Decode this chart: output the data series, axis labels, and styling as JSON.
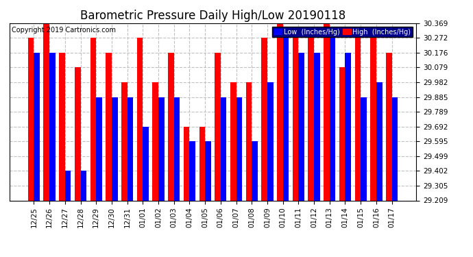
{
  "title": "Barometric Pressure Daily High/Low 20190118",
  "copyright": "Copyright 2019 Cartronics.com",
  "legend_low": "Low  (Inches/Hg)",
  "legend_high": "High  (Inches/Hg)",
  "dates": [
    "12/25",
    "12/26",
    "12/27",
    "12/28",
    "12/29",
    "12/30",
    "12/31",
    "01/01",
    "01/02",
    "01/03",
    "01/04",
    "01/05",
    "01/06",
    "01/07",
    "01/08",
    "01/09",
    "01/10",
    "01/11",
    "01/12",
    "01/13",
    "01/14",
    "01/15",
    "01/16",
    "01/17"
  ],
  "high": [
    30.272,
    30.369,
    30.176,
    30.079,
    30.272,
    30.176,
    29.982,
    30.272,
    29.982,
    30.176,
    29.692,
    29.692,
    30.176,
    29.982,
    29.982,
    30.272,
    30.369,
    30.272,
    30.272,
    30.369,
    30.079,
    30.272,
    30.272,
    30.176
  ],
  "low": [
    30.176,
    30.176,
    29.402,
    29.402,
    29.885,
    29.885,
    29.885,
    29.692,
    29.885,
    29.885,
    29.595,
    29.595,
    29.885,
    29.885,
    29.595,
    29.982,
    30.272,
    30.176,
    30.176,
    30.272,
    30.176,
    29.885,
    29.982,
    29.885
  ],
  "color_high": "#ff0000",
  "color_low": "#0000ff",
  "background_color": "#ffffff",
  "plot_bg_color": "#ffffff",
  "grid_color": "#c0c0c0",
  "yticks": [
    29.209,
    29.305,
    29.402,
    29.499,
    29.595,
    29.692,
    29.789,
    29.885,
    29.982,
    30.079,
    30.176,
    30.272,
    30.369
  ],
  "ymin": 29.209,
  "ymax": 30.369,
  "title_fontsize": 12,
  "copyright_fontsize": 7,
  "tick_fontsize": 7.5,
  "bar_width": 0.38
}
